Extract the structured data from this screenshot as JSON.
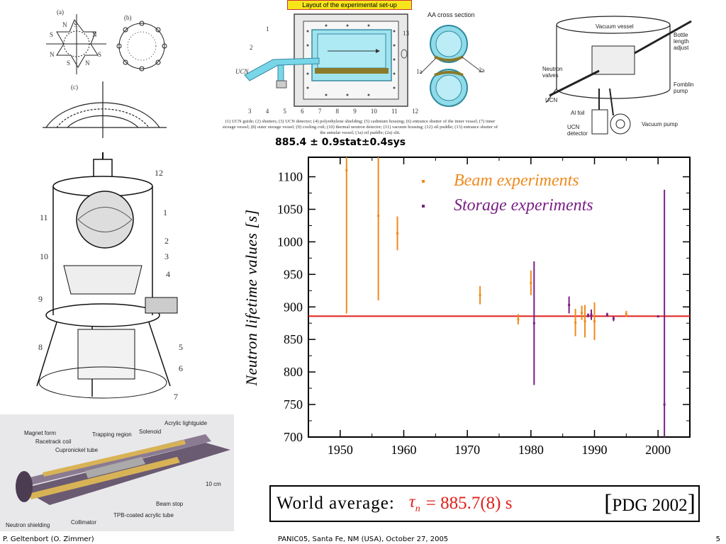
{
  "figures": {
    "magnet_labels": [
      "(a)",
      "(b)",
      "(c)"
    ],
    "magnet_letters": [
      "S",
      "N",
      "S",
      "N",
      "S",
      "N",
      "S",
      "N"
    ],
    "layout_title": "Layout of the experimental set-up",
    "layout_numbers_top": [
      "1",
      "2",
      "13"
    ],
    "layout_numbers_bottom": [
      "3",
      "4",
      "5",
      "6",
      "7",
      "8",
      "9",
      "10",
      "11",
      "12"
    ],
    "layout_side_label": "UCN",
    "layout_caption": "(1) UCN guide; (2) shutters; (3) UCN detector; (4) polyethylene shielding; (5) cadmium housing; (6) entrance shutter of the inner vessel; (7) inner storage vessel; (8) outer storage vessel; (9) cooling coil; (10) thermal neutron detector; (11) vacuum housing; (12) oil puddle; (13) entrance shutter of the annular vessel; (1a) oil puddle; (2a) slit.",
    "cross_section_title": "AA cross section",
    "cross_section_labels": [
      "1a",
      "2a"
    ],
    "vessel_labels": [
      "Vacuum vessel",
      "Bottle length adjust",
      "Neutron valves",
      "Fomblin pump",
      "UCN",
      "Al foil",
      "Vacuum pump",
      "UCN detector"
    ],
    "apparatus_numbers": [
      "12",
      "11",
      "1",
      "2",
      "10",
      "3",
      "4",
      "9",
      "5",
      "8",
      "6",
      "7"
    ],
    "trap_labels": [
      "Magnet form",
      "Racetrack coil",
      "Trapping region",
      "Solenoid",
      "Acrylic lightguide",
      "Cupronickel tube",
      "Beam stop",
      "TPB-coated acrylic tube",
      "Collimator",
      "Neutron shielding",
      "10 cm"
    ]
  },
  "headline": "885.4 ± 0.9stat±0.4sys",
  "chart_data": {
    "type": "scatter",
    "ylabel": "Neutron lifetime values [s]",
    "xlabel": "",
    "xlim": [
      1945,
      2005
    ],
    "ylim": [
      700,
      1130
    ],
    "xticks": [
      1950,
      1960,
      1970,
      1980,
      1990,
      2000
    ],
    "yticks": [
      700,
      750,
      800,
      850,
      900,
      950,
      1000,
      1050,
      1100
    ],
    "legend_position": "top-right",
    "reference_line": {
      "y": 885.7,
      "color": "#e0201a"
    },
    "series": [
      {
        "name": "Beam experiments",
        "color": "#f08a1c",
        "points": [
          {
            "x": 1951,
            "y": 1110,
            "lo": 890,
            "hi": 1130
          },
          {
            "x": 1956,
            "y": 1040,
            "lo": 910,
            "hi": 1130
          },
          {
            "x": 1959,
            "y": 1013,
            "lo": 987,
            "hi": 1039
          },
          {
            "x": 1972,
            "y": 918,
            "lo": 904,
            "hi": 932
          },
          {
            "x": 1978,
            "y": 881,
            "lo": 873,
            "hi": 889
          },
          {
            "x": 1980,
            "y": 937,
            "lo": 918,
            "hi": 956
          },
          {
            "x": 1987,
            "y": 876,
            "lo": 855,
            "hi": 897
          },
          {
            "x": 1988,
            "y": 891,
            "lo": 880,
            "hi": 902
          },
          {
            "x": 1988.5,
            "y": 878,
            "lo": 853,
            "hi": 903
          },
          {
            "x": 1990,
            "y": 878,
            "lo": 849,
            "hi": 907
          },
          {
            "x": 1995,
            "y": 889,
            "lo": 885,
            "hi": 894
          }
        ]
      },
      {
        "name": "Storage experiments",
        "color": "#7a1f86",
        "points": [
          {
            "x": 1980.5,
            "y": 875,
            "lo": 780,
            "hi": 970
          },
          {
            "x": 1986,
            "y": 903,
            "lo": 890,
            "hi": 916
          },
          {
            "x": 1989,
            "y": 887,
            "lo": 884,
            "hi": 890
          },
          {
            "x": 1989.5,
            "y": 888,
            "lo": 880,
            "hi": 896
          },
          {
            "x": 1992,
            "y": 888,
            "lo": 885,
            "hi": 891
          },
          {
            "x": 1993,
            "y": 882,
            "lo": 878,
            "hi": 886
          },
          {
            "x": 2000,
            "y": 885.4,
            "lo": 884,
            "hi": 887
          },
          {
            "x": 2001,
            "y": 750,
            "lo": 700,
            "hi": 1080
          }
        ]
      }
    ]
  },
  "world_average": {
    "label": "World average:",
    "symbol": "τ",
    "subscript": "n",
    "value": "= 885.7(8) s",
    "reference": "PDG 2002"
  },
  "footer": {
    "author": "P. Geltenbort (O. Zimmer)",
    "conference": "PANIC05, Santa Fe, NM (USA), October 27, 2005",
    "page": "5"
  }
}
